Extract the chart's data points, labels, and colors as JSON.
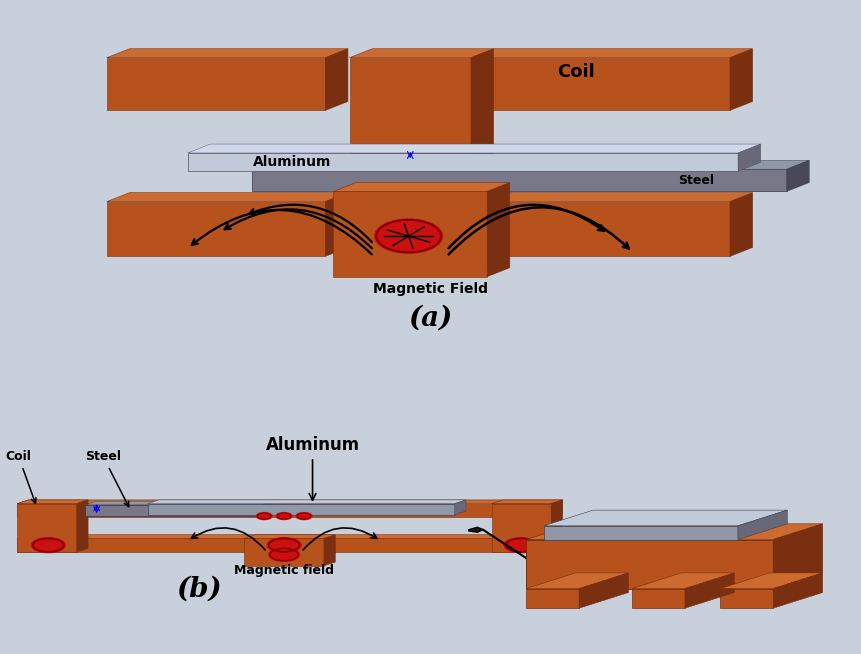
{
  "background_color": "#c8d0dc",
  "bg_panel_a": "#d0d8e4",
  "bg_panel_b": "#ccd4e0",
  "copper_face": "#b8521c",
  "copper_top": "#cc6a30",
  "copper_dark": "#7a3010",
  "copper_shadow": "#904020",
  "aluminum_face": "#9098a8",
  "aluminum_top": "#c0cad8",
  "aluminum_dark": "#686878",
  "steel_face": "#787888",
  "steel_top": "#9098a8",
  "steel_dark": "#484858",
  "red_bright": "#cc1010",
  "red_dark": "#880000",
  "label_a": "(a)",
  "label_b": "(b)",
  "coil_text": "Coil",
  "aluminum_text": "Aluminum",
  "steel_text": "Steel",
  "magnetic_field_text": "Magnetic Field",
  "magnetic_field_text_b": "Magnetic field",
  "coil_text_b": "Coil",
  "steel_text_b": "Steel",
  "aluminum_text_b": "Aluminum"
}
